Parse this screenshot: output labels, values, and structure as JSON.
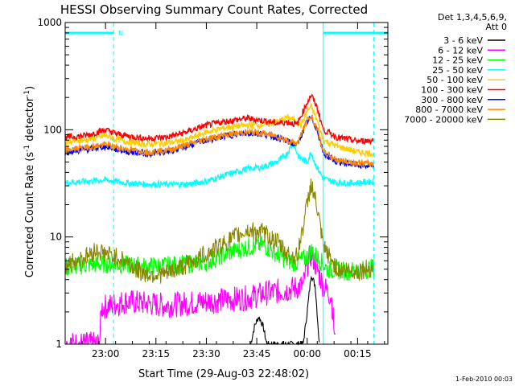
{
  "chart_data": {
    "type": "line",
    "title": "HESSI Observing Summary Count Rates, Corrected",
    "xlabel": "Start Time (29-Aug-03 22:48:02)",
    "ylabel_main": "Corrected Count Rate (s",
    "ylabel_sup1": "-1",
    "ylabel_mid": " detector",
    "ylabel_sup2": "-1",
    "ylabel_end": ")",
    "yscale": "log",
    "ylim": [
      1,
      1000
    ],
    "xlim_minutes": [
      22.8,
      24.4
    ],
    "x_ticks": [
      {
        "t": 23.0,
        "label": "23:00"
      },
      {
        "t": 23.25,
        "label": "23:15"
      },
      {
        "t": 23.5,
        "label": "23:30"
      },
      {
        "t": 23.75,
        "label": "23:45"
      },
      {
        "t": 24.0,
        "label": "00:00"
      },
      {
        "t": 24.25,
        "label": "00:15"
      }
    ],
    "y_ticks": [
      {
        "v": 1,
        "label": "1"
      },
      {
        "v": 10,
        "label": "10"
      },
      {
        "v": 100,
        "label": "100"
      },
      {
        "v": 1000,
        "label": "1000"
      }
    ],
    "legend_header": [
      "Det 1,3,4,5,6,9,",
      "Att 0"
    ],
    "flags": {
      "label": "N",
      "color": "#00ffff",
      "segments": [
        [
          22.8,
          23.04
        ],
        [
          24.08,
          24.4
        ]
      ],
      "dashed_lines": [
        23.04,
        24.33
      ],
      "solid_lines": [
        24.08
      ]
    },
    "series": [
      {
        "name": "3 - 6 keV",
        "color": "#000000",
        "points": [
          [
            23.72,
            1.0
          ],
          [
            23.74,
            1.5
          ],
          [
            23.76,
            1.8
          ],
          [
            23.78,
            1.5
          ],
          [
            23.8,
            1.0
          ],
          [
            23.98,
            1.0
          ],
          [
            24.0,
            2.0
          ],
          [
            24.02,
            4.5
          ],
          [
            24.04,
            3.5
          ],
          [
            24.06,
            1.0
          ]
        ]
      },
      {
        "name": "6 - 12 keV",
        "color": "#ff00ff",
        "points": [
          [
            22.8,
            1.0
          ],
          [
            22.97,
            1.0
          ],
          [
            22.98,
            2.2
          ],
          [
            23.1,
            2.5
          ],
          [
            23.3,
            2.3
          ],
          [
            23.5,
            2.5
          ],
          [
            23.7,
            2.7
          ],
          [
            23.8,
            3.0
          ],
          [
            23.9,
            3.2
          ],
          [
            23.98,
            3.5
          ],
          [
            24.0,
            5.5
          ],
          [
            24.02,
            7.0
          ],
          [
            24.05,
            5.0
          ],
          [
            24.08,
            3.5
          ],
          [
            24.12,
            2.8
          ],
          [
            24.14,
            1.0
          ]
        ]
      },
      {
        "name": "12 - 25 keV",
        "color": "#00ff00",
        "points": [
          [
            22.8,
            5.2
          ],
          [
            22.9,
            5.5
          ],
          [
            23.0,
            5.6
          ],
          [
            23.1,
            5.5
          ],
          [
            23.2,
            5.3
          ],
          [
            23.3,
            5.4
          ],
          [
            23.5,
            5.8
          ],
          [
            23.6,
            7.0
          ],
          [
            23.7,
            8.0
          ],
          [
            23.78,
            8.5
          ],
          [
            23.85,
            7.0
          ],
          [
            23.9,
            6.0
          ],
          [
            23.95,
            5.8
          ],
          [
            24.0,
            6.5
          ],
          [
            24.02,
            7.5
          ],
          [
            24.05,
            6.5
          ],
          [
            24.1,
            5.0
          ],
          [
            24.2,
            4.8
          ],
          [
            24.3,
            5.0
          ],
          [
            24.33,
            5.2
          ]
        ]
      },
      {
        "name": "25 - 50 keV",
        "color": "#00ffff",
        "points": [
          [
            22.8,
            32
          ],
          [
            22.9,
            33
          ],
          [
            23.0,
            34
          ],
          [
            23.05,
            33
          ],
          [
            23.1,
            32
          ],
          [
            23.2,
            31
          ],
          [
            23.3,
            31
          ],
          [
            23.4,
            31
          ],
          [
            23.5,
            33
          ],
          [
            23.6,
            38
          ],
          [
            23.7,
            43
          ],
          [
            23.78,
            45
          ],
          [
            23.85,
            50
          ],
          [
            23.9,
            60
          ],
          [
            23.93,
            75
          ],
          [
            23.96,
            55
          ],
          [
            24.0,
            50
          ],
          [
            24.02,
            62
          ],
          [
            24.04,
            48
          ],
          [
            24.08,
            35
          ],
          [
            24.15,
            32
          ],
          [
            24.25,
            32
          ],
          [
            24.33,
            33
          ]
        ]
      },
      {
        "name": "50 - 100 keV",
        "color": "#ffcc00",
        "points": [
          [
            22.8,
            78
          ],
          [
            22.9,
            80
          ],
          [
            23.0,
            88
          ],
          [
            23.05,
            82
          ],
          [
            23.1,
            78
          ],
          [
            23.2,
            73
          ],
          [
            23.3,
            75
          ],
          [
            23.4,
            80
          ],
          [
            23.5,
            95
          ],
          [
            23.6,
            105
          ],
          [
            23.7,
            110
          ],
          [
            23.8,
            112
          ],
          [
            23.85,
            118
          ],
          [
            23.9,
            130
          ],
          [
            23.93,
            125
          ],
          [
            23.97,
            110
          ],
          [
            24.0,
            150
          ],
          [
            24.02,
            165
          ],
          [
            24.05,
            120
          ],
          [
            24.08,
            80
          ],
          [
            24.15,
            70
          ],
          [
            24.25,
            62
          ],
          [
            24.33,
            60
          ]
        ]
      },
      {
        "name": "100 - 300 keV",
        "color": "#ff0000",
        "points": [
          [
            22.8,
            85
          ],
          [
            22.9,
            88
          ],
          [
            23.0,
            100
          ],
          [
            23.05,
            92
          ],
          [
            23.1,
            88
          ],
          [
            23.2,
            83
          ],
          [
            23.3,
            85
          ],
          [
            23.4,
            95
          ],
          [
            23.5,
            110
          ],
          [
            23.6,
            120
          ],
          [
            23.7,
            128
          ],
          [
            23.8,
            120
          ],
          [
            23.85,
            115
          ],
          [
            23.9,
            118
          ],
          [
            23.95,
            112
          ],
          [
            24.0,
            180
          ],
          [
            24.02,
            210
          ],
          [
            24.05,
            160
          ],
          [
            24.08,
            100
          ],
          [
            24.15,
            85
          ],
          [
            24.25,
            78
          ],
          [
            24.33,
            80
          ]
        ]
      },
      {
        "name": "300 - 800 keV",
        "color": "#0000ff",
        "points": [
          [
            22.8,
            62
          ],
          [
            22.9,
            65
          ],
          [
            23.0,
            70
          ],
          [
            23.05,
            66
          ],
          [
            23.1,
            63
          ],
          [
            23.2,
            60
          ],
          [
            23.3,
            62
          ],
          [
            23.4,
            70
          ],
          [
            23.5,
            80
          ],
          [
            23.6,
            88
          ],
          [
            23.7,
            93
          ],
          [
            23.78,
            92
          ],
          [
            23.85,
            85
          ],
          [
            23.9,
            78
          ],
          [
            23.95,
            72
          ],
          [
            24.0,
            120
          ],
          [
            24.02,
            130
          ],
          [
            24.05,
            100
          ],
          [
            24.08,
            60
          ],
          [
            24.15,
            50
          ],
          [
            24.25,
            47
          ],
          [
            24.33,
            45
          ]
        ]
      },
      {
        "name": "800 - 7000 keV",
        "color": "#ff8800",
        "points": [
          [
            22.8,
            65
          ],
          [
            22.9,
            68
          ],
          [
            23.0,
            73
          ],
          [
            23.05,
            69
          ],
          [
            23.1,
            66
          ],
          [
            23.2,
            62
          ],
          [
            23.3,
            64
          ],
          [
            23.4,
            72
          ],
          [
            23.5,
            82
          ],
          [
            23.6,
            90
          ],
          [
            23.7,
            95
          ],
          [
            23.78,
            93
          ],
          [
            23.85,
            87
          ],
          [
            23.9,
            80
          ],
          [
            23.95,
            74
          ],
          [
            24.0,
            122
          ],
          [
            24.02,
            132
          ],
          [
            24.05,
            102
          ],
          [
            24.08,
            62
          ],
          [
            24.15,
            52
          ],
          [
            24.25,
            49
          ],
          [
            24.33,
            48
          ]
        ]
      },
      {
        "name": "7000 - 20000 keV",
        "color": "#888800",
        "points": [
          [
            22.8,
            5.5
          ],
          [
            22.9,
            6.5
          ],
          [
            22.95,
            7.5
          ],
          [
            23.0,
            7.0
          ],
          [
            23.05,
            6.5
          ],
          [
            23.1,
            6.0
          ],
          [
            23.15,
            5.0
          ],
          [
            23.2,
            4.5
          ],
          [
            23.3,
            4.5
          ],
          [
            23.4,
            5.5
          ],
          [
            23.5,
            7.0
          ],
          [
            23.6,
            9.0
          ],
          [
            23.7,
            11.5
          ],
          [
            23.78,
            11.0
          ],
          [
            23.85,
            9.0
          ],
          [
            23.9,
            7.0
          ],
          [
            23.95,
            6.5
          ],
          [
            24.0,
            20
          ],
          [
            24.02,
            32
          ],
          [
            24.05,
            18
          ],
          [
            24.08,
            8
          ],
          [
            24.15,
            5.0
          ],
          [
            24.25,
            4.8
          ],
          [
            24.33,
            5.2
          ]
        ]
      }
    ]
  },
  "footer": {
    "date_stamp": "1-Feb-2010 00:03"
  }
}
